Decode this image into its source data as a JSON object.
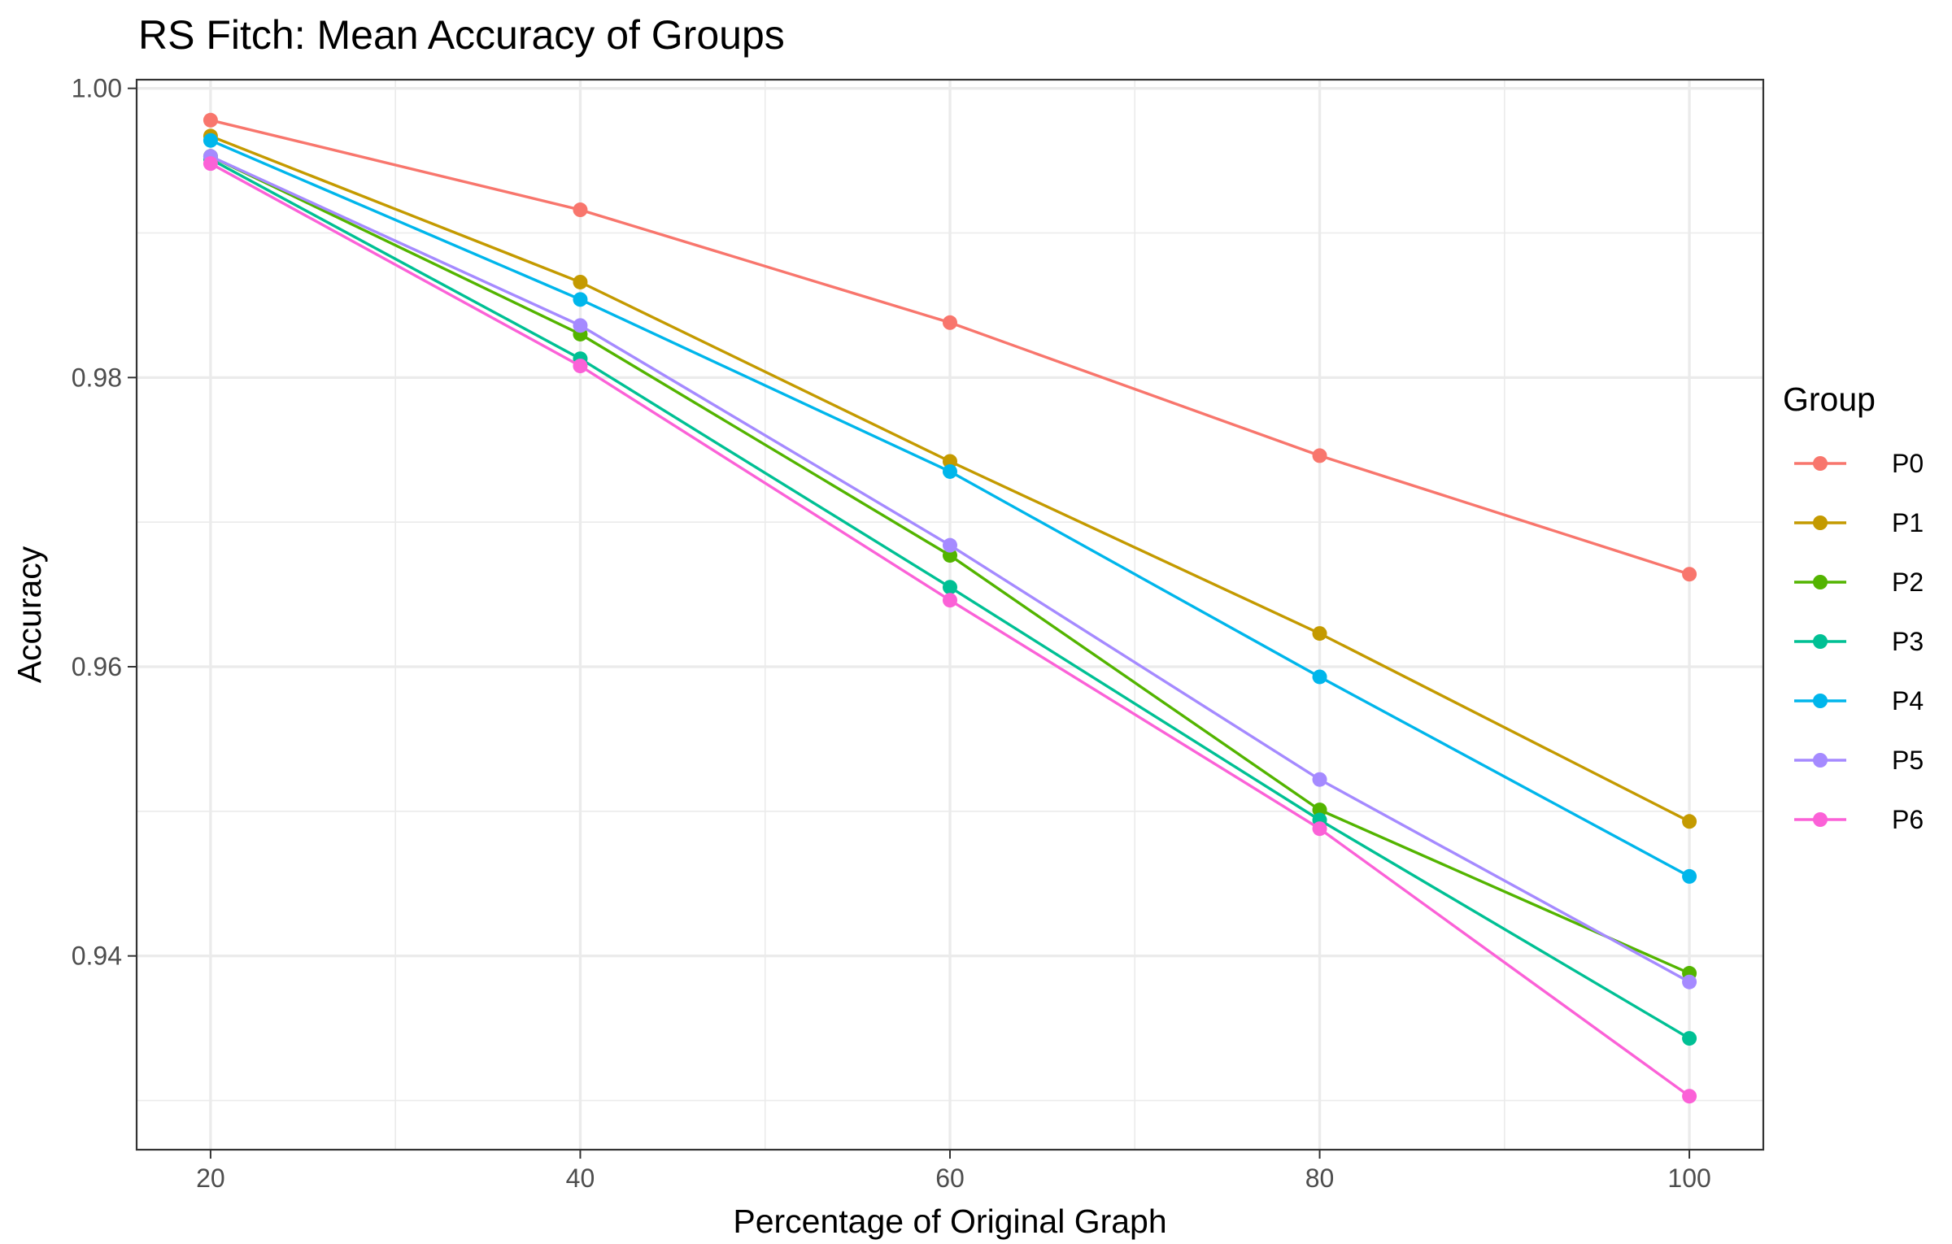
{
  "chart_data": {
    "type": "line",
    "title": "RS Fitch: Mean Accuracy of Groups",
    "xlabel": "Percentage of Original Graph",
    "ylabel": "Accuracy",
    "x": [
      20,
      40,
      60,
      80,
      100
    ],
    "xlim": [
      16,
      104
    ],
    "ylim": [
      0.9266,
      1.0006
    ],
    "x_ticks": [
      20,
      40,
      60,
      80,
      100
    ],
    "y_ticks": [
      0.94,
      0.96,
      0.98,
      1.0
    ],
    "x_tick_labels": [
      "20",
      "40",
      "60",
      "80",
      "100"
    ],
    "y_tick_labels": [
      "0.94",
      "0.96",
      "0.98",
      "1.00"
    ],
    "x_minor_ticks": [
      30,
      50,
      70,
      90
    ],
    "y_minor_ticks": [
      0.93,
      0.95,
      0.97,
      0.99
    ],
    "grid": true,
    "legend_title": "Group",
    "legend_position": "right",
    "series": [
      {
        "name": "P0",
        "color": "#F8766D",
        "values": [
          0.9978,
          0.9916,
          0.9838,
          0.9746,
          0.9664
        ]
      },
      {
        "name": "P1",
        "color": "#C49A00",
        "values": [
          0.9967,
          0.9866,
          0.9742,
          0.9623,
          0.9493
        ]
      },
      {
        "name": "P2",
        "color": "#53B400",
        "values": [
          0.9953,
          0.983,
          0.9677,
          0.9501,
          0.9388
        ]
      },
      {
        "name": "P3",
        "color": "#00C094",
        "values": [
          0.9951,
          0.9813,
          0.9655,
          0.9494,
          0.9343
        ]
      },
      {
        "name": "P4",
        "color": "#00B6EB",
        "values": [
          0.9964,
          0.9854,
          0.9735,
          0.9593,
          0.9455
        ]
      },
      {
        "name": "P5",
        "color": "#A58AFF",
        "values": [
          0.9953,
          0.9836,
          0.9684,
          0.9522,
          0.9382
        ]
      },
      {
        "name": "P6",
        "color": "#FB61D7",
        "values": [
          0.9948,
          0.9808,
          0.9646,
          0.9488,
          0.9303
        ]
      }
    ]
  }
}
